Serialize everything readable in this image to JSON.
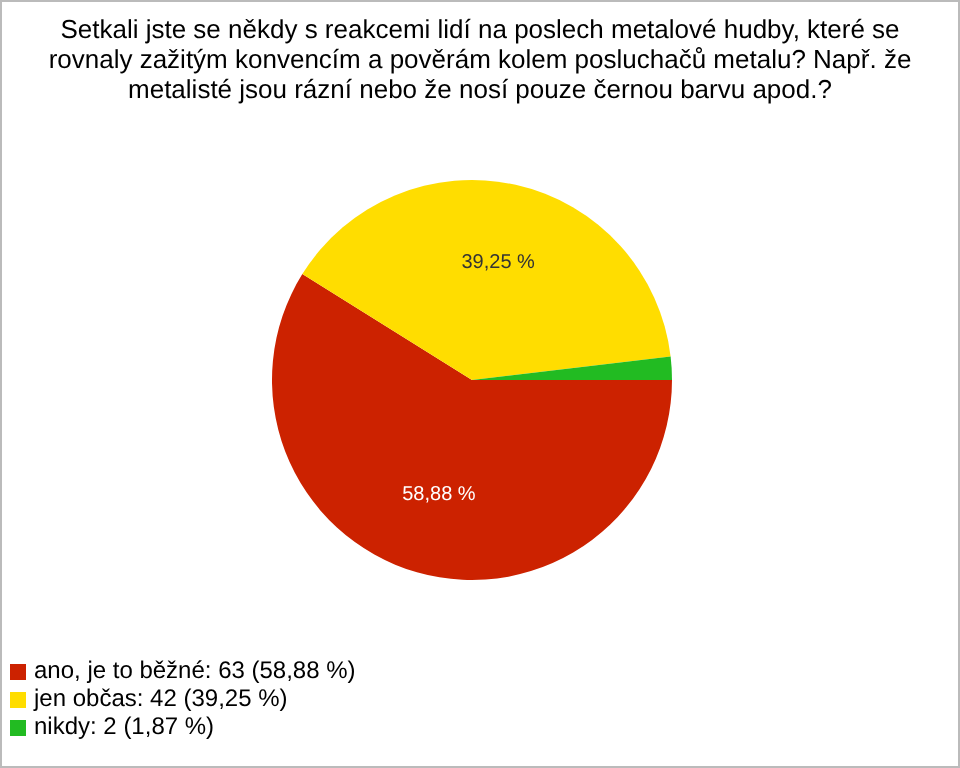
{
  "chart_data": {
    "type": "pie",
    "title": "Setkali jste se někdy s reakcemi lidí na poslech metalové hudby, které se rovnaly zažitým konvencím a pověrám kolem posluchačů metalu? Např. že metalisté jsou rázní nebo že nosí pouze černou barvu apod.?",
    "categories": [
      "ano, je to běžné: 63 (58,88 %)",
      "jen občas: 42 (39,25 %)",
      "nikdy: 2 (1,87 %)"
    ],
    "values": [
      58.88,
      39.25,
      1.87
    ],
    "colors": [
      "#cc2200",
      "#ffdd00",
      "#22bb22"
    ],
    "value_labels": [
      "58,88 %",
      "39,25 %",
      null
    ],
    "legend": "bottom left"
  }
}
